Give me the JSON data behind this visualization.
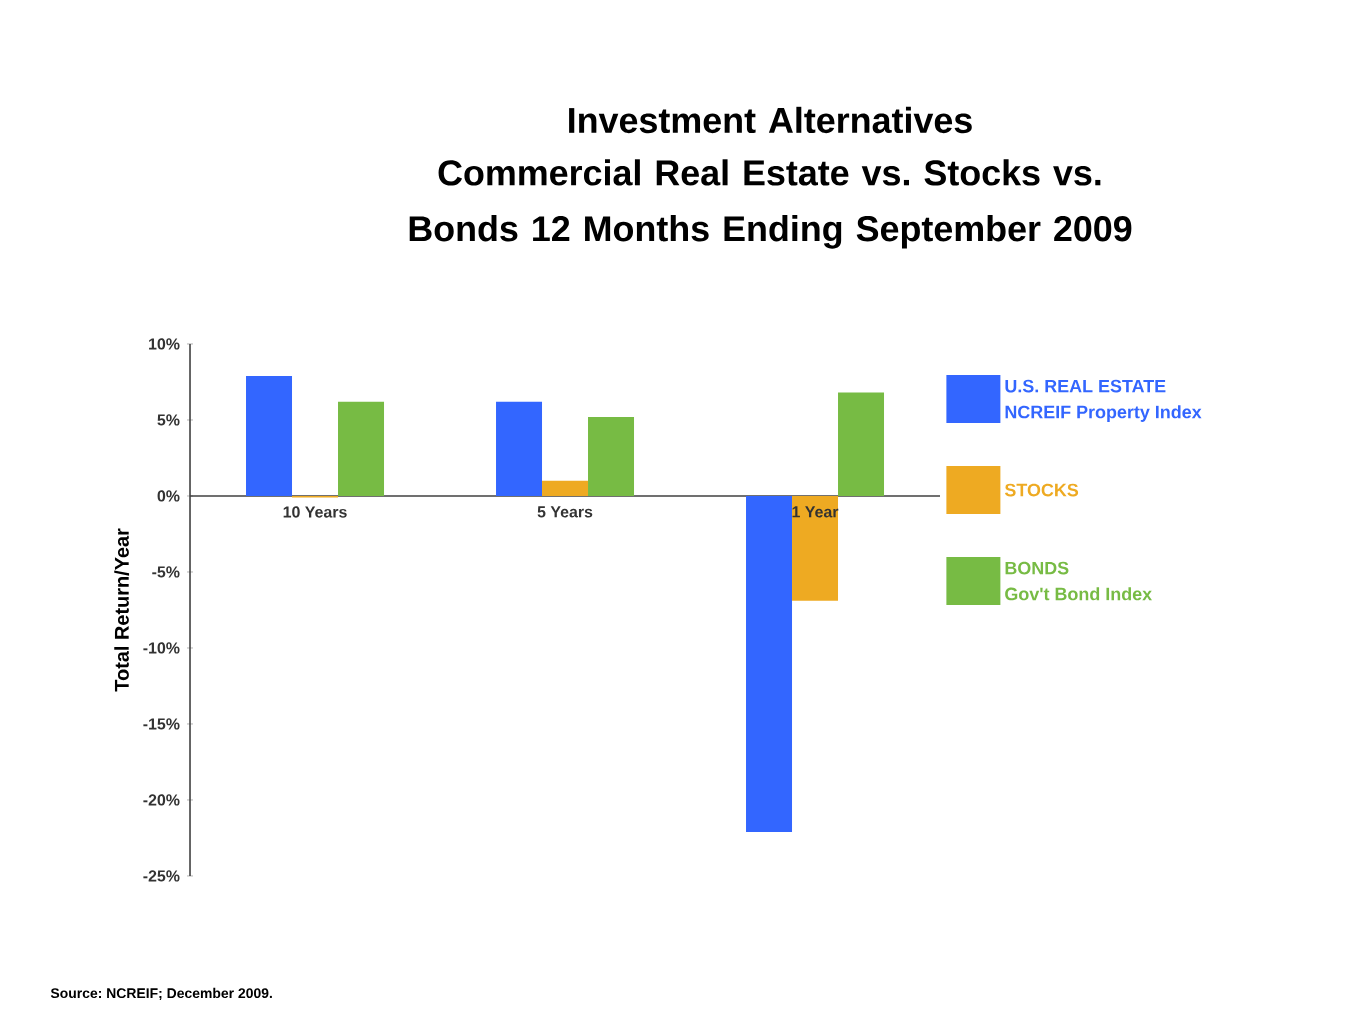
{
  "chart_data": {
    "type": "bar",
    "title": "Investment Alternatives",
    "subtitle": "Commercial Real Estate vs. Stocks vs. Bonds 12 Months Ending September 2009",
    "ylabel": "Total Return/Year",
    "categories": [
      "10 Years",
      "5 Years",
      "1 Year"
    ],
    "series": [
      {
        "name": "U.S. REAL ESTATE",
        "color": "#3366ff",
        "values": [
          7.9,
          6.2,
          -22.1
        ]
      },
      {
        "name": "STOCKS",
        "color": "#eeaa22",
        "values": [
          -0.1,
          1.0,
          -6.9
        ]
      },
      {
        "name": "BONDS",
        "color": "#77bb44",
        "values": [
          6.2,
          5.2,
          6.8
        ]
      }
    ],
    "ylim": [
      -25,
      10
    ],
    "yticks": [
      {
        "value": -25,
        "label": "-25%"
      },
      {
        "value": -20,
        "label": "-20%"
      },
      {
        "value": -15,
        "label": "-15%"
      },
      {
        "value": -10,
        "label": "-10%"
      },
      {
        "value": -5,
        "label": "-5%"
      },
      {
        "value": 0,
        "label": "0%"
      },
      {
        "value": 5,
        "label": "5%"
      },
      {
        "value": 10,
        "label": "10%"
      }
    ],
    "legend": "right",
    "grid": false,
    "annotations": [
      "NCREIF Property Index",
      "Gov't Bond Index",
      "Source: NCREIF; December 2009."
    ]
  }
}
